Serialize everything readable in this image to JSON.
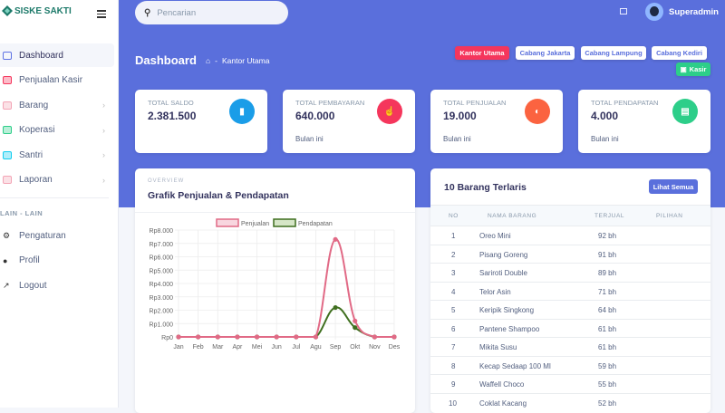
{
  "app": {
    "brand": "SISKE SAKTI"
  },
  "sidebar": {
    "items": [
      {
        "label": "Dashboard",
        "icon": "monitor-icon",
        "color": "#5e72e4",
        "active": true,
        "chevron": false
      },
      {
        "label": "Penjualan Kasir",
        "icon": "store-icon",
        "color": "#f5365c",
        "chevron": false
      },
      {
        "label": "Barang",
        "icon": "box-icon",
        "color": "#f3a4b5",
        "chevron": true
      },
      {
        "label": "Koperasi",
        "icon": "shop-icon",
        "color": "#2dce89",
        "chevron": true
      },
      {
        "label": "Santri",
        "icon": "users-grid-icon",
        "color": "#11cdef",
        "chevron": true
      },
      {
        "label": "Laporan",
        "icon": "report-icon",
        "color": "#f3a4b5",
        "chevron": true
      }
    ],
    "section_heading": "LAIN - LAIN",
    "other_items": [
      {
        "label": "Pengaturan",
        "icon": "gear-icon"
      },
      {
        "label": "Profil",
        "icon": "user-icon"
      },
      {
        "label": "Logout",
        "icon": "logout-icon"
      }
    ]
  },
  "header": {
    "search_placeholder": "Pencarian",
    "user_name": "Superadmin",
    "page_title": "Dashboard",
    "breadcrumb": [
      "Kantor Utama"
    ],
    "branch_buttons": [
      "Kantor Utama",
      "Cabang Jakarta",
      "Cabang Lampung",
      "Cabang Kediri"
    ],
    "kasir_button": "Kasir"
  },
  "stats": [
    {
      "label": "TOTAL SALDO",
      "value": "2.381.500",
      "sub": "",
      "icon": "bar-chart-icon",
      "color": "#1a9de8"
    },
    {
      "label": "TOTAL PEMBAYARAN",
      "value": "640.000",
      "sub": "Bulan ini",
      "icon": "hand-pointer-icon",
      "color": "#f5365c"
    },
    {
      "label": "TOTAL PENJUALAN",
      "value": "19.000",
      "sub": "Bulan ini",
      "icon": "pie-chart-icon",
      "color": "#fb6340"
    },
    {
      "label": "TOTAL PENDAPATAN",
      "value": "4.000",
      "sub": "Bulan ini",
      "icon": "money-icon",
      "color": "#2dce89"
    }
  ],
  "chart_card": {
    "overline": "OVERVIEW",
    "title": "Grafik Penjualan & Pendapatan"
  },
  "chart_data": {
    "type": "line",
    "title": "Grafik Penjualan & Pendapatan",
    "categories": [
      "Jan",
      "Feb",
      "Mar",
      "Apr",
      "Mei",
      "Jun",
      "Jul",
      "Agu",
      "Sep",
      "Okt",
      "Nov",
      "Des"
    ],
    "series": [
      {
        "name": "Penjualan",
        "color": "#e16a86",
        "values": [
          0,
          0,
          0,
          0,
          0,
          0,
          0,
          0,
          7300,
          1200,
          0,
          0
        ]
      },
      {
        "name": "Pendapatan",
        "color": "#3f6f1f",
        "values": [
          0,
          0,
          0,
          0,
          0,
          0,
          0,
          0,
          2200,
          700,
          0,
          0
        ]
      }
    ],
    "ylim": [
      0,
      8000
    ],
    "yticks": [
      "Rp0",
      "Rp1.000",
      "Rp2.000",
      "Rp3.000",
      "Rp4.000",
      "Rp5.000",
      "Rp6.000",
      "Rp7.000",
      "Rp8.000"
    ],
    "legend_position": "top",
    "grid": true
  },
  "table_card": {
    "title": "10 Barang Terlaris",
    "button": "Lihat Semua",
    "columns": [
      "NO",
      "NAMA BARANG",
      "TERJUAL",
      "PILIHAN"
    ],
    "rows": [
      [
        "1",
        "Oreo Mini",
        "92 bh"
      ],
      [
        "2",
        "Pisang Goreng",
        "91 bh"
      ],
      [
        "3",
        "Sariroti Double",
        "89 bh"
      ],
      [
        "4",
        "Telor Asin",
        "71 bh"
      ],
      [
        "5",
        "Keripik Singkong",
        "64 bh"
      ],
      [
        "6",
        "Pantene Shampoo",
        "61 bh"
      ],
      [
        "7",
        "Mikita Susu",
        "61 bh"
      ],
      [
        "8",
        "Kecap Sedaap 100 Ml",
        "59 bh"
      ],
      [
        "9",
        "Waffell Choco",
        "55 bh"
      ],
      [
        "10",
        "Coklat Kacang",
        "52 bh"
      ]
    ]
  }
}
